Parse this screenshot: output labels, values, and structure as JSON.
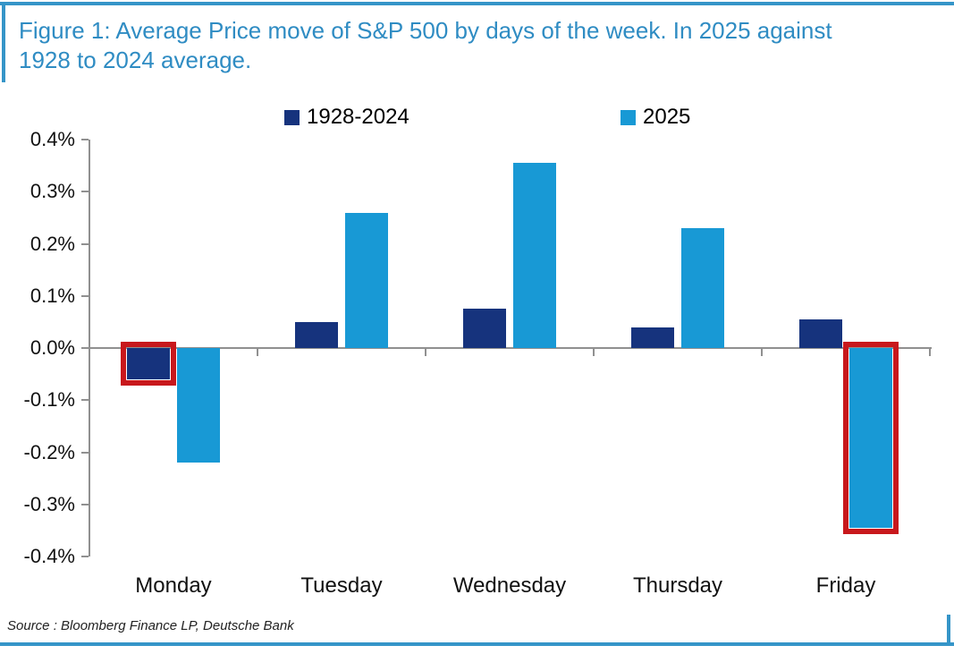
{
  "header": {
    "title_line1": "Figure 1: Average Price move of S&P 500 by days of the week. In 2025 against",
    "title_line2": "1928 to 2024 average.",
    "title_full": "Figure 1: Average Price move of S&P 500 by days of the week. In 2025 against 1928 to 2024 average."
  },
  "chart_data": {
    "type": "bar",
    "title": "Figure 1: Average Price move of S&P 500 by days of the week. In 2025 against 1928 to 2024 average.",
    "categories": [
      "Monday",
      "Tuesday",
      "Wednesday",
      "Thursday",
      "Friday"
    ],
    "series": [
      {
        "name": "1928-2024",
        "color": "#16337d",
        "values": [
          -0.06,
          0.05,
          0.075,
          0.04,
          0.055
        ]
      },
      {
        "name": "2025",
        "color": "#1899d5",
        "values": [
          -0.22,
          0.26,
          0.355,
          0.23,
          -0.345
        ]
      }
    ],
    "highlights": [
      {
        "series_index": 0,
        "category_index": 0
      },
      {
        "series_index": 1,
        "category_index": 4
      }
    ],
    "highlight_color": "#c8181c",
    "y_ticks": [
      "0.4%",
      "0.3%",
      "0.2%",
      "0.1%",
      "0.0%",
      "-0.1%",
      "-0.2%",
      "-0.3%",
      "-0.4%"
    ],
    "y_tick_values": [
      0.4,
      0.3,
      0.2,
      0.1,
      0.0,
      -0.1,
      -0.2,
      -0.3,
      -0.4
    ],
    "ylabel": "",
    "xlabel": "",
    "ylim": [
      -0.4,
      0.4
    ],
    "grid": false,
    "legend_position": "top"
  },
  "footer": {
    "source": "Source : Bloomberg Finance LP, Deutsche Bank"
  },
  "colors": {
    "title_blue": "#2f8cc3",
    "frame_blue": "#3595c8",
    "axis_grey": "#909090",
    "label_black": "#111111"
  }
}
